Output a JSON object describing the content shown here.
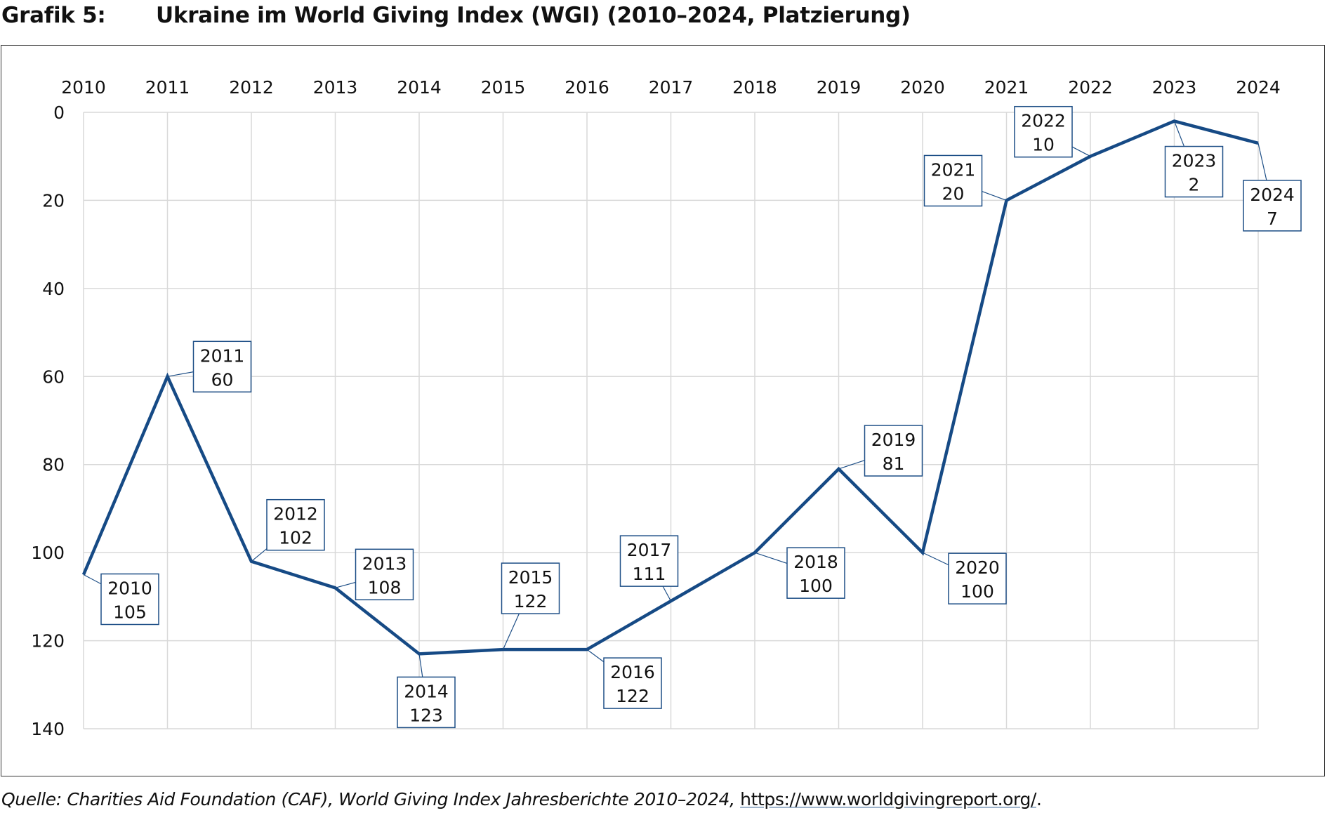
{
  "figure": {
    "label": "Grafik 5:",
    "title": "Ukraine im World Giving Index (WGI) (2010–2024, Platzierung)",
    "source_text": "Quelle: Charities Aid Foundation (CAF), World Giving Index Jahresberichte 2010–2024, ",
    "source_url": "https://www.worldgivingreport.org/",
    "source_end": "."
  },
  "chart_data": {
    "type": "line",
    "title": "Ukraine im World Giving Index (WGI) (2010–2024, Platzierung)",
    "xlabel": "",
    "ylabel": "",
    "x": [
      "2010",
      "2011",
      "2012",
      "2013",
      "2014",
      "2015",
      "2016",
      "2017",
      "2018",
      "2019",
      "2020",
      "2021",
      "2022",
      "2023",
      "2024"
    ],
    "series": [
      {
        "name": "",
        "values": [
          105,
          60,
          102,
          108,
          123,
          122,
          122,
          111,
          100,
          81,
          100,
          20,
          10,
          2,
          7
        ]
      }
    ],
    "ylim": [
      0,
      140
    ],
    "y_inverted": true,
    "x_axis_position": "top",
    "yticks": [
      0,
      20,
      40,
      60,
      80,
      100,
      120,
      140
    ],
    "grid": true,
    "legend": "none",
    "data_labels": true,
    "colors": {
      "line": "#164a85",
      "grid": "#d9d9d9",
      "label_border": "#1d4e86"
    }
  }
}
